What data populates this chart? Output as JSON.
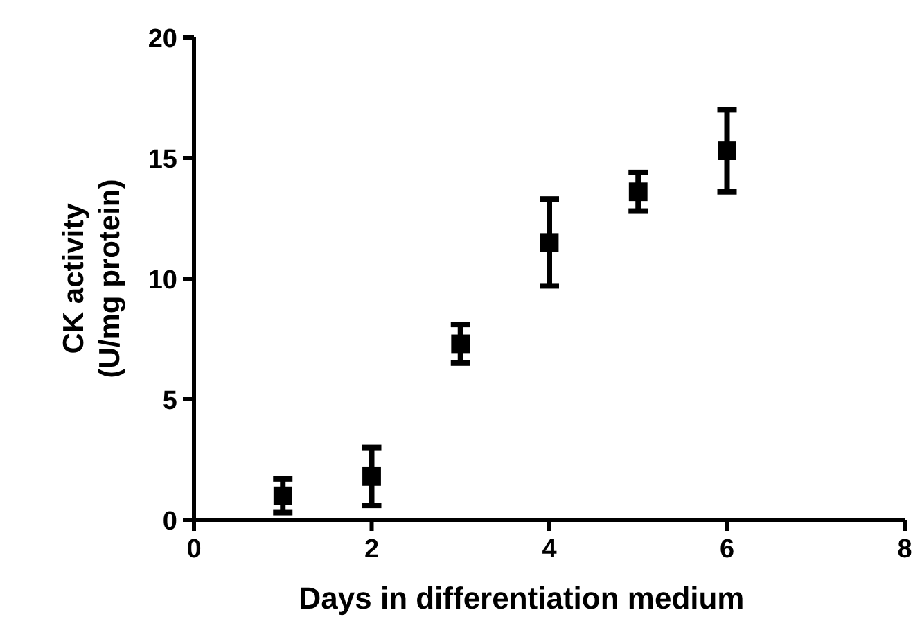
{
  "chart_data": {
    "type": "scatter",
    "xlabel": "Days in differentiation medium",
    "ylabel": "CK activity\n(U/mg protein)",
    "x": [
      1,
      2,
      3,
      4,
      5,
      6
    ],
    "values": [
      1.0,
      1.8,
      7.3,
      11.5,
      13.6,
      15.3
    ],
    "errors": [
      0.7,
      1.2,
      0.8,
      1.8,
      0.8,
      1.7
    ],
    "color": "#000000",
    "marker": "square",
    "grid": false,
    "xlim": [
      0,
      8
    ],
    "xticks": [
      0,
      2,
      4,
      6,
      8
    ],
    "ylim": [
      0,
      20
    ],
    "yticks": [
      0,
      5,
      10,
      15,
      20
    ]
  }
}
